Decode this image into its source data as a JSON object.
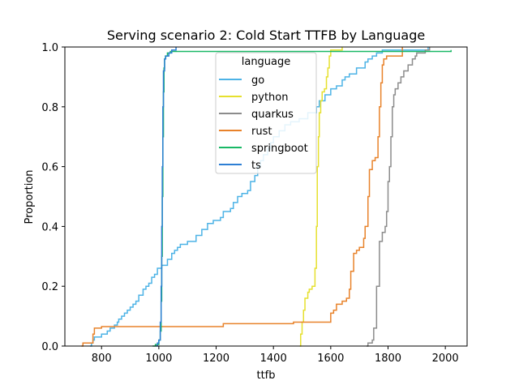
{
  "chart_data": {
    "type": "line",
    "subtype": "ecdf-step",
    "title": "Serving scenario 2: Cold Start TTFB by Language",
    "xlabel": "ttfb",
    "ylabel": "Proportion",
    "xlim": [
      672,
      2076
    ],
    "ylim": [
      0,
      1.0
    ],
    "xticks": [
      800,
      1000,
      1200,
      1400,
      1600,
      1800,
      2000
    ],
    "yticks": [
      0.0,
      0.2,
      0.4,
      0.6,
      0.8,
      1.0
    ],
    "grid": false,
    "legend": {
      "title": "language",
      "placement": "top-center"
    },
    "series": [
      {
        "name": "go",
        "color": "#4db3e6",
        "points": [
          [
            760,
            0
          ],
          [
            765,
            0.01
          ],
          [
            770,
            0.02
          ],
          [
            775,
            0.03
          ],
          [
            800,
            0.04
          ],
          [
            820,
            0.05
          ],
          [
            830,
            0.06
          ],
          [
            845,
            0.07
          ],
          [
            855,
            0.08
          ],
          [
            860,
            0.09
          ],
          [
            870,
            0.1
          ],
          [
            880,
            0.11
          ],
          [
            890,
            0.12
          ],
          [
            900,
            0.13
          ],
          [
            910,
            0.14
          ],
          [
            920,
            0.15
          ],
          [
            930,
            0.17
          ],
          [
            945,
            0.19
          ],
          [
            955,
            0.2
          ],
          [
            965,
            0.21
          ],
          [
            975,
            0.23
          ],
          [
            985,
            0.24
          ],
          [
            995,
            0.26
          ],
          [
            1010,
            0.27
          ],
          [
            1030,
            0.29
          ],
          [
            1045,
            0.31
          ],
          [
            1055,
            0.32
          ],
          [
            1065,
            0.33
          ],
          [
            1075,
            0.34
          ],
          [
            1100,
            0.35
          ],
          [
            1130,
            0.37
          ],
          [
            1150,
            0.39
          ],
          [
            1170,
            0.41
          ],
          [
            1190,
            0.42
          ],
          [
            1215,
            0.43
          ],
          [
            1225,
            0.45
          ],
          [
            1250,
            0.46
          ],
          [
            1260,
            0.48
          ],
          [
            1275,
            0.5
          ],
          [
            1290,
            0.51
          ],
          [
            1310,
            0.52
          ],
          [
            1320,
            0.55
          ],
          [
            1335,
            0.57
          ],
          [
            1345,
            0.6
          ],
          [
            1355,
            0.62
          ],
          [
            1365,
            0.64
          ],
          [
            1380,
            0.66
          ],
          [
            1390,
            0.68
          ],
          [
            1400,
            0.7
          ],
          [
            1420,
            0.72
          ],
          [
            1440,
            0.74
          ],
          [
            1460,
            0.75
          ],
          [
            1490,
            0.76
          ],
          [
            1520,
            0.78
          ],
          [
            1550,
            0.8
          ],
          [
            1560,
            0.82
          ],
          [
            1580,
            0.84
          ],
          [
            1600,
            0.86
          ],
          [
            1620,
            0.87
          ],
          [
            1640,
            0.89
          ],
          [
            1650,
            0.9
          ],
          [
            1665,
            0.91
          ],
          [
            1690,
            0.93
          ],
          [
            1720,
            0.95
          ],
          [
            1730,
            0.96
          ],
          [
            1745,
            0.97
          ],
          [
            1760,
            0.98
          ],
          [
            1780,
            0.99
          ],
          [
            1940,
            1.0
          ]
        ]
      },
      {
        "name": "python",
        "color": "#e6e02e",
        "points": [
          [
            1492,
            0
          ],
          [
            1495,
            0.04
          ],
          [
            1500,
            0.08
          ],
          [
            1505,
            0.12
          ],
          [
            1510,
            0.16
          ],
          [
            1520,
            0.18
          ],
          [
            1525,
            0.19
          ],
          [
            1535,
            0.2
          ],
          [
            1545,
            0.26
          ],
          [
            1550,
            0.4
          ],
          [
            1553,
            0.6
          ],
          [
            1557,
            0.7
          ],
          [
            1560,
            0.78
          ],
          [
            1565,
            0.82
          ],
          [
            1570,
            0.85
          ],
          [
            1578,
            0.86
          ],
          [
            1585,
            0.9
          ],
          [
            1590,
            0.93
          ],
          [
            1595,
            0.97
          ],
          [
            1600,
            0.99
          ],
          [
            1640,
            1.0
          ]
        ]
      },
      {
        "name": "quarkus",
        "color": "#8c8c8c",
        "points": [
          [
            1725,
            0
          ],
          [
            1730,
            0.01
          ],
          [
            1745,
            0.02
          ],
          [
            1750,
            0.06
          ],
          [
            1760,
            0.2
          ],
          [
            1770,
            0.35
          ],
          [
            1780,
            0.38
          ],
          [
            1790,
            0.4
          ],
          [
            1795,
            0.45
          ],
          [
            1800,
            0.55
          ],
          [
            1805,
            0.6
          ],
          [
            1810,
            0.7
          ],
          [
            1815,
            0.8
          ],
          [
            1820,
            0.84
          ],
          [
            1825,
            0.86
          ],
          [
            1835,
            0.88
          ],
          [
            1845,
            0.9
          ],
          [
            1855,
            0.92
          ],
          [
            1870,
            0.94
          ],
          [
            1885,
            0.96
          ],
          [
            1895,
            0.97
          ],
          [
            1900,
            0.98
          ],
          [
            1930,
            0.99
          ],
          [
            1945,
            1.0
          ]
        ]
      },
      {
        "name": "rust",
        "color": "#e8822a",
        "points": [
          [
            730,
            0
          ],
          [
            735,
            0.01
          ],
          [
            770,
            0.04
          ],
          [
            775,
            0.06
          ],
          [
            800,
            0.065
          ],
          [
            1225,
            0.075
          ],
          [
            1470,
            0.08
          ],
          [
            1600,
            0.11
          ],
          [
            1610,
            0.12
          ],
          [
            1620,
            0.14
          ],
          [
            1640,
            0.15
          ],
          [
            1655,
            0.16
          ],
          [
            1665,
            0.19
          ],
          [
            1670,
            0.25
          ],
          [
            1680,
            0.31
          ],
          [
            1690,
            0.32
          ],
          [
            1700,
            0.33
          ],
          [
            1715,
            0.36
          ],
          [
            1720,
            0.4
          ],
          [
            1730,
            0.5
          ],
          [
            1735,
            0.59
          ],
          [
            1745,
            0.62
          ],
          [
            1755,
            0.63
          ],
          [
            1765,
            0.7
          ],
          [
            1770,
            0.8
          ],
          [
            1775,
            0.88
          ],
          [
            1780,
            0.94
          ],
          [
            1785,
            0.96
          ],
          [
            1795,
            0.97
          ],
          [
            1850,
            1.0
          ]
        ]
      },
      {
        "name": "springboot",
        "color": "#19b866",
        "points": [
          [
            978,
            0
          ],
          [
            988,
            0.005
          ],
          [
            1000,
            0.02
          ],
          [
            1005,
            0.05
          ],
          [
            1008,
            0.15
          ],
          [
            1010,
            0.3
          ],
          [
            1012,
            0.5
          ],
          [
            1014,
            0.7
          ],
          [
            1016,
            0.85
          ],
          [
            1018,
            0.93
          ],
          [
            1020,
            0.96
          ],
          [
            1023,
            0.97
          ],
          [
            1030,
            0.98
          ],
          [
            1040,
            0.985
          ],
          [
            2020,
            0.99
          ]
        ]
      },
      {
        "name": "ts",
        "color": "#2e7fd4",
        "points": [
          [
            990,
            0
          ],
          [
            995,
            0.01
          ],
          [
            1000,
            0.02
          ],
          [
            1005,
            0.08
          ],
          [
            1008,
            0.2
          ],
          [
            1010,
            0.4
          ],
          [
            1012,
            0.6
          ],
          [
            1014,
            0.8
          ],
          [
            1016,
            0.92
          ],
          [
            1020,
            0.96
          ],
          [
            1024,
            0.97
          ],
          [
            1035,
            0.98
          ],
          [
            1045,
            0.99
          ],
          [
            1060,
            1.0
          ]
        ]
      }
    ]
  }
}
